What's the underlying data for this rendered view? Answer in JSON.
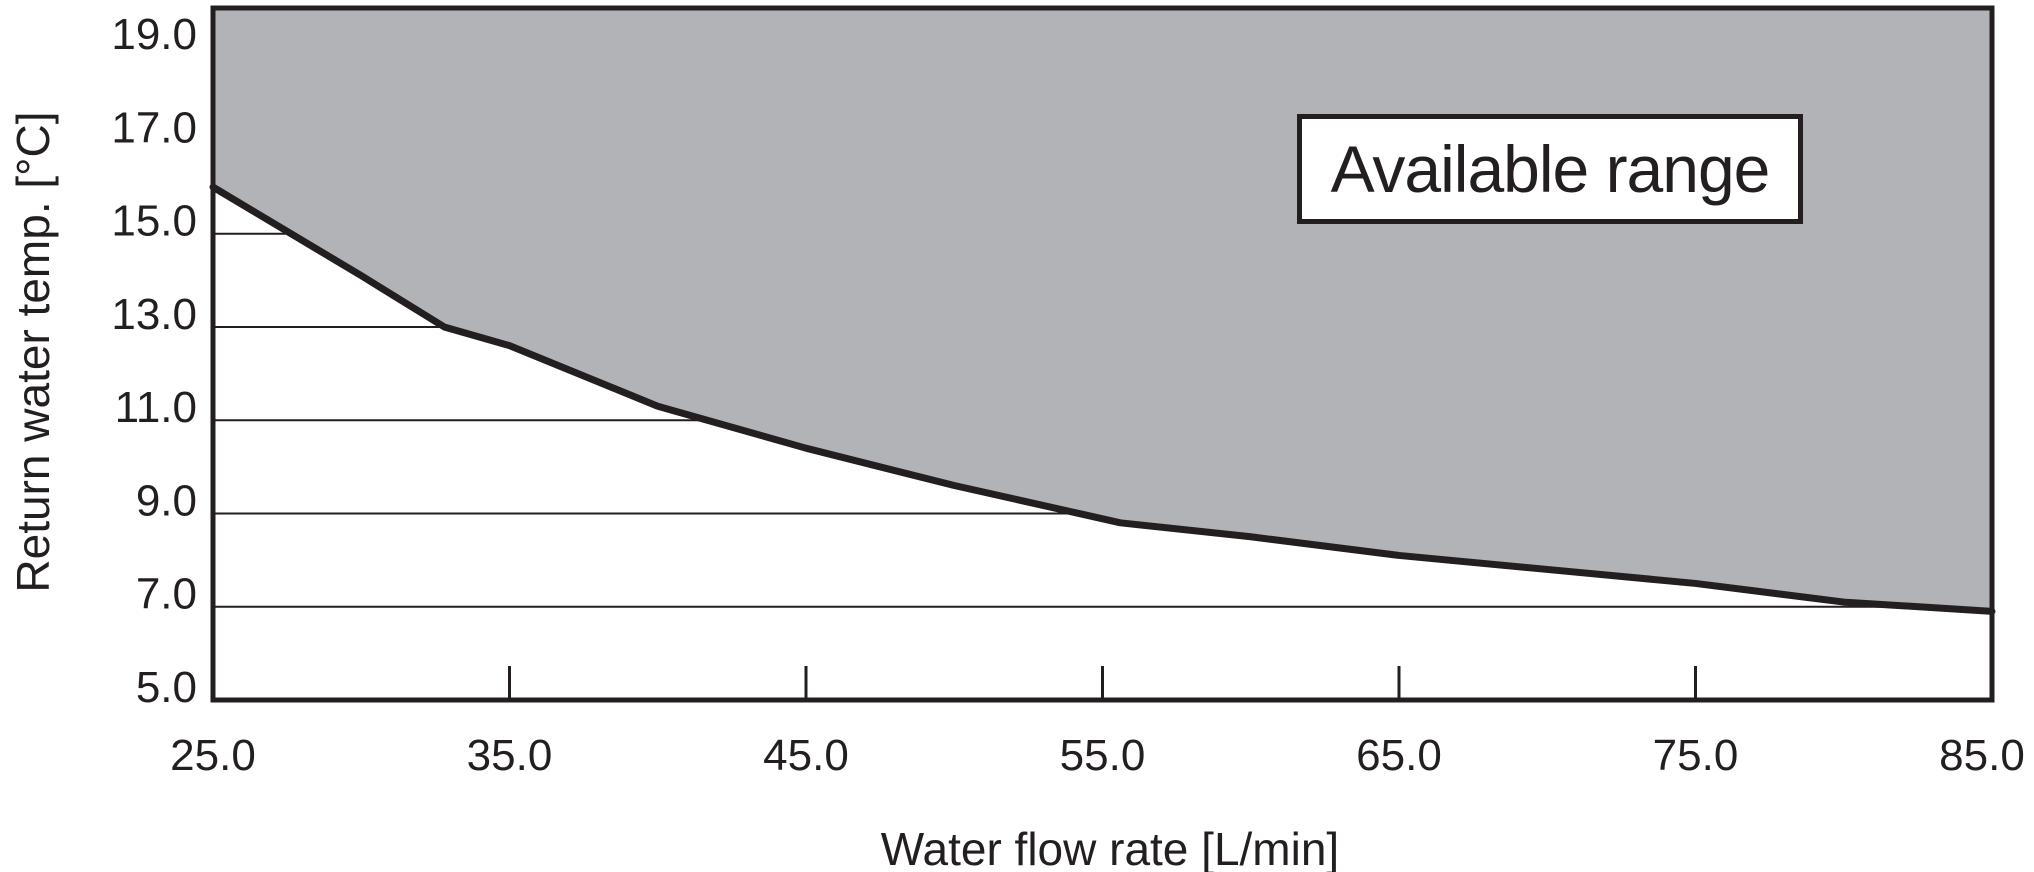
{
  "colors": {
    "background": "#ffffff",
    "line": "#231f20",
    "text": "#231f20",
    "region_fill": "#b1b3b6"
  },
  "region_box": {
    "label": "Available range"
  },
  "chart_data": {
    "type": "area",
    "title": "",
    "xlabel": "Water flow rate [L/min]",
    "ylabel": "Return water temp. [°C]",
    "xlim": [
      25.0,
      85.0
    ],
    "ylim": [
      5.0,
      19.84
    ],
    "x_ticks": [
      25.0,
      35.0,
      45.0,
      55.0,
      65.0,
      75.0,
      85.0
    ],
    "x_tick_labels": [
      "25.0",
      "35.0",
      "45.0",
      "55.0",
      "65.0",
      "75.0",
      "85.0"
    ],
    "y_ticks": [
      5.0,
      7.0,
      9.0,
      11.0,
      13.0,
      15.0,
      17.0,
      19.0
    ],
    "y_tick_labels": [
      "5.0",
      "7.0",
      "9.0",
      "11.0",
      "13.0",
      "15.0",
      "17.0",
      "19.0"
    ],
    "gridlines_y": [
      7.0,
      9.0,
      11.0,
      13.0,
      15.0
    ],
    "grid": "horizontal-only, drawn only below the boundary curve",
    "legend_position": "none",
    "region_label": "Available range",
    "region_side": "above boundary curve, shaded gray",
    "boundary": {
      "description": "lower limit of available range: return water temp vs water flow rate",
      "x": [
        25.0,
        30.0,
        32.8,
        35.0,
        40.0,
        45.0,
        50.0,
        54.2,
        55.6,
        60.0,
        65.0,
        70.0,
        75.0,
        80.0,
        85.0
      ],
      "y": [
        16.0,
        14.1,
        13.0,
        12.6,
        11.3,
        10.4,
        9.6,
        9.0,
        8.8,
        8.5,
        8.1,
        7.8,
        7.5,
        7.1,
        6.9
      ]
    }
  }
}
